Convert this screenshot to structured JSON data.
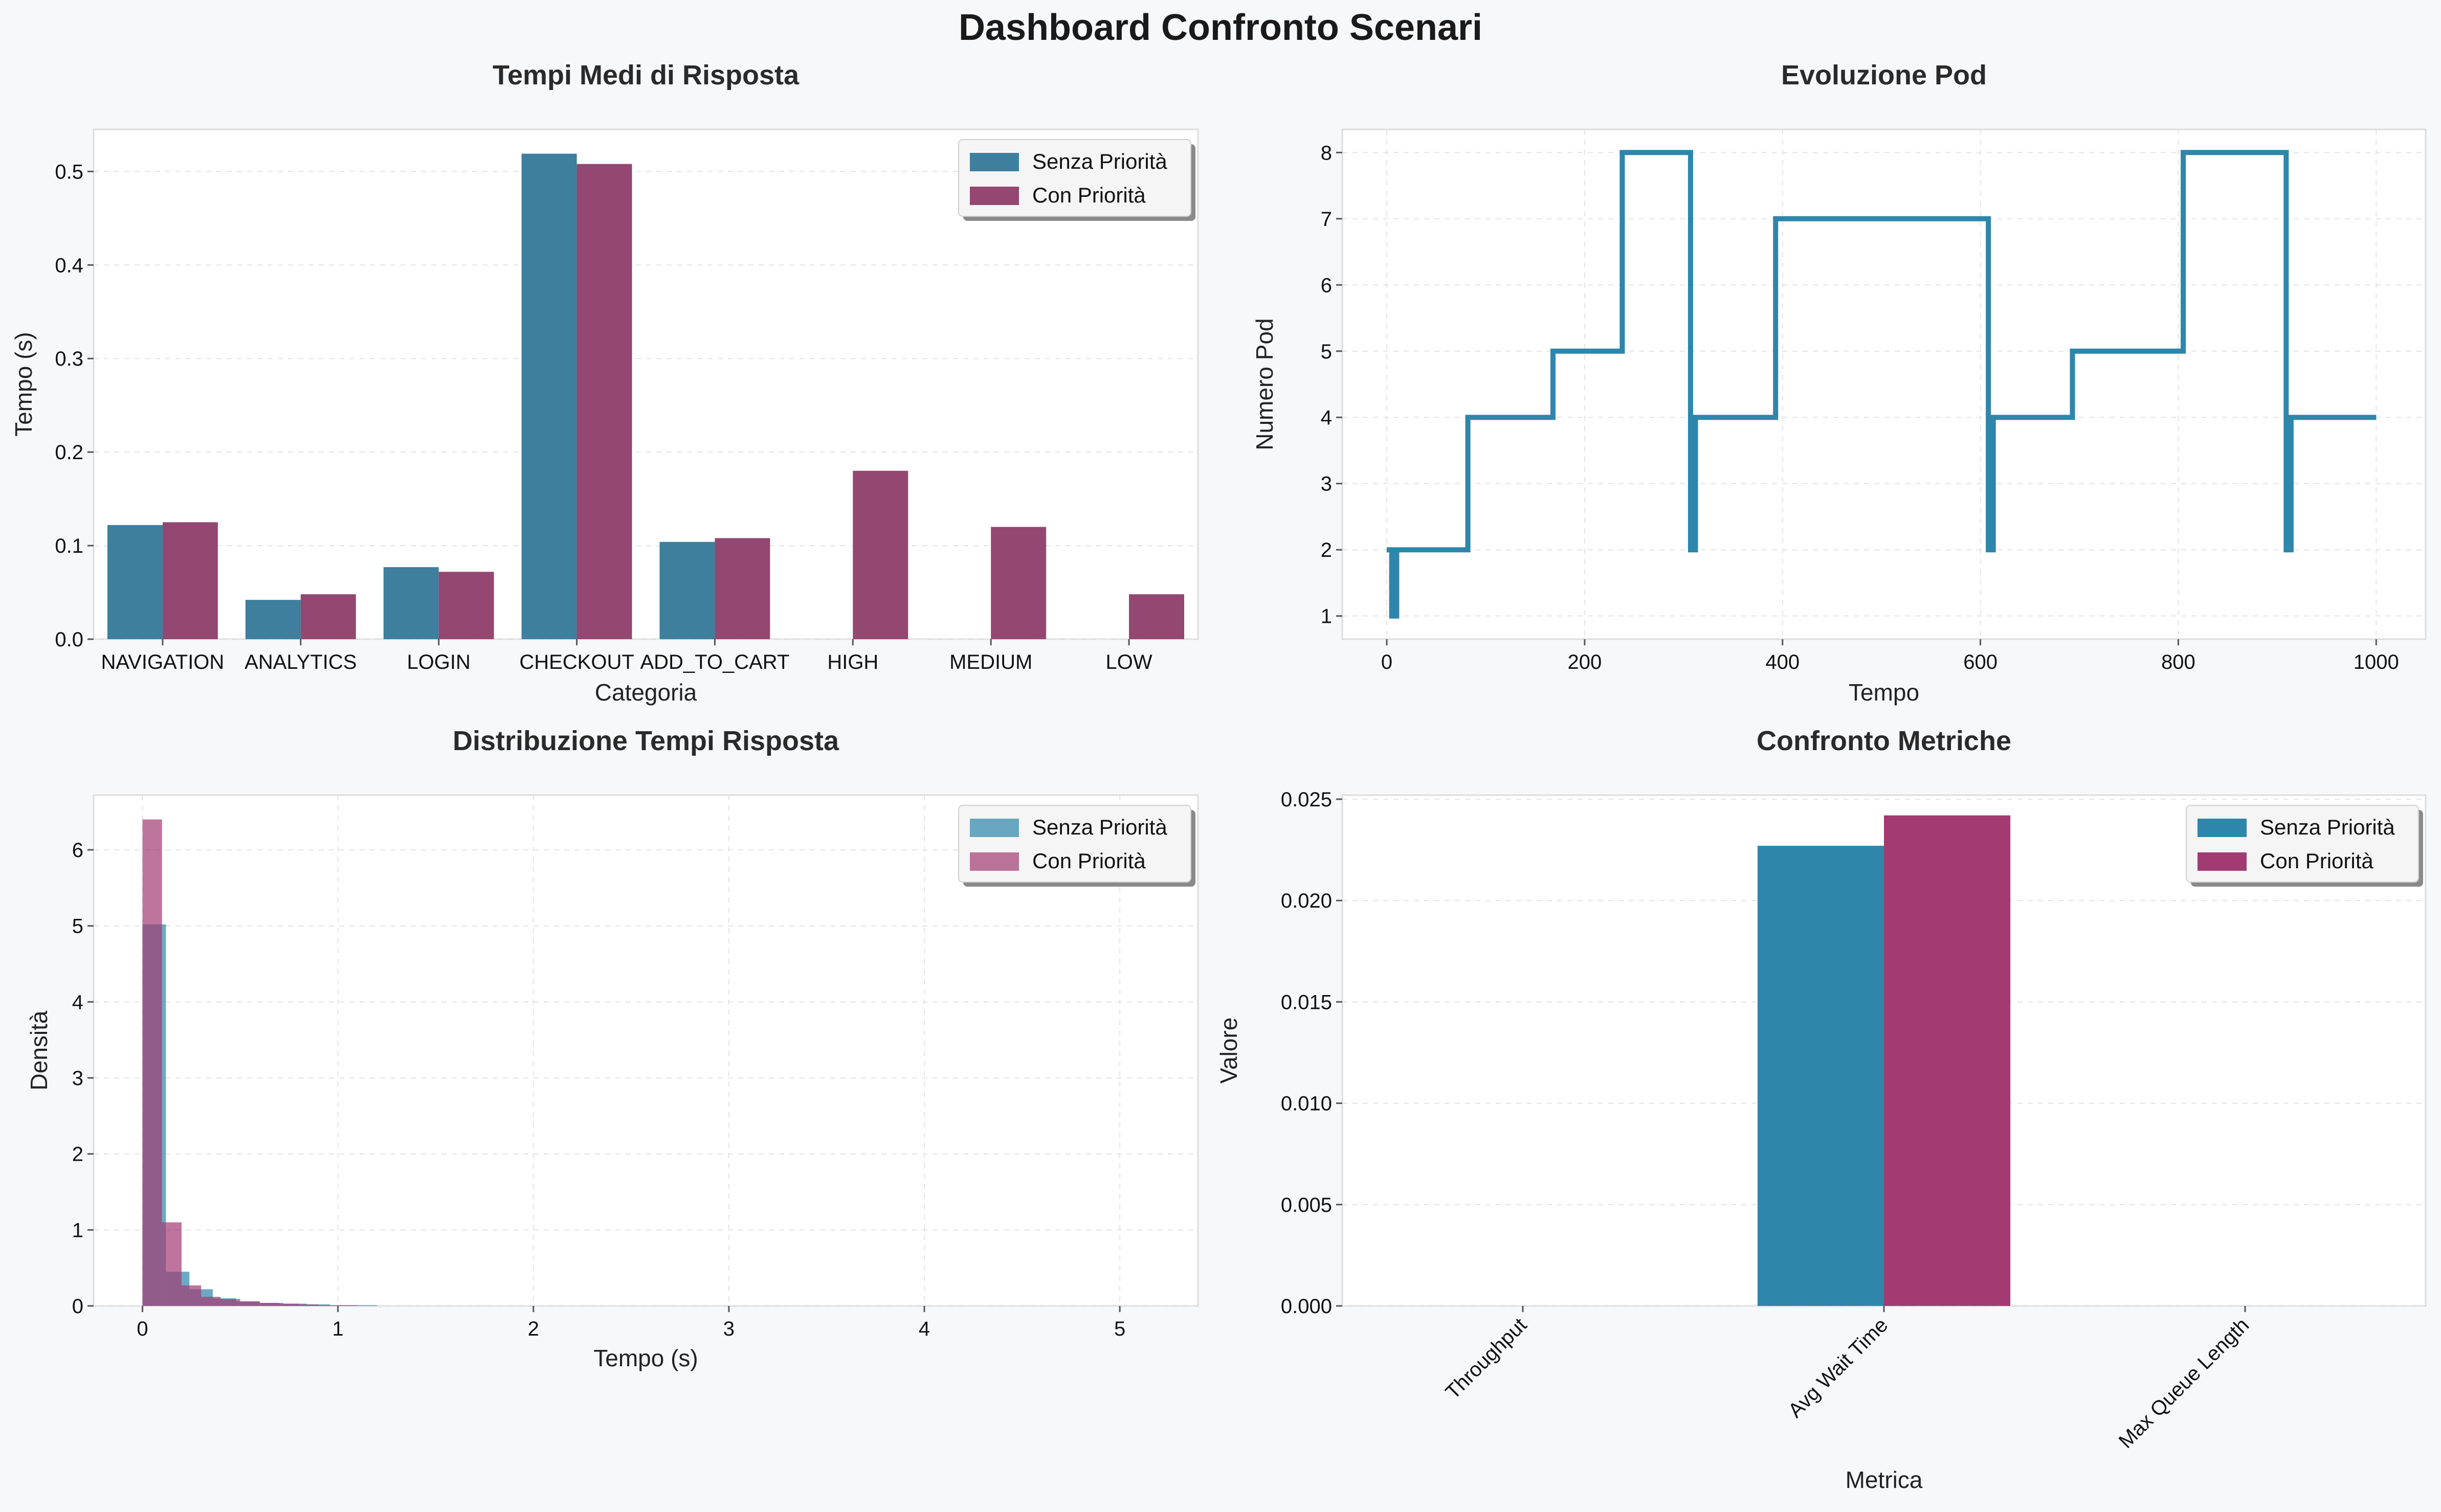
{
  "title": "Dashboard Confronto Scenari",
  "colors": {
    "series_a": "#2e86ab",
    "series_b": "#a23b72",
    "bar_a_dark": "#3d7f9c",
    "bar_b_dark": "#944770",
    "hist_a": "#6aa9c3",
    "hist_b": "#bd789c"
  },
  "chart_data": [
    {
      "type": "bar",
      "title": "Tempi Medi di Risposta",
      "xlabel": "Categoria",
      "ylabel": "Tempo (s)",
      "categories": [
        "NAVIGATION",
        "ANALYTICS",
        "LOGIN",
        "CHECKOUT",
        "ADD_TO_CART",
        "HIGH",
        "MEDIUM",
        "LOW"
      ],
      "series": [
        {
          "name": "Senza Priorità",
          "values": [
            0.122,
            0.042,
            0.077,
            0.519,
            0.104,
            null,
            null,
            null
          ]
        },
        {
          "name": "Con Priorità",
          "values": [
            0.125,
            0.048,
            0.072,
            0.508,
            0.108,
            0.18,
            0.12,
            0.048
          ]
        }
      ],
      "ylim": [
        0,
        0.545
      ],
      "yticks": [
        0.0,
        0.1,
        0.2,
        0.3,
        0.4,
        0.5
      ],
      "ytick_labels": [
        "0.0",
        "0.1",
        "0.2",
        "0.3",
        "0.4",
        "0.5"
      ],
      "grid": true,
      "legend": "top-right"
    },
    {
      "type": "line",
      "title": "Evoluzione Pod",
      "xlabel": "Tempo",
      "ylabel": "Numero Pod",
      "series": [
        {
          "x": [
            0,
            5,
            5,
            10,
            10,
            15,
            15,
            82,
            82,
            168,
            168,
            238,
            238,
            307,
            307,
            312,
            312,
            393,
            393,
            608,
            608,
            613,
            613,
            693,
            693,
            805,
            805,
            909,
            909,
            914,
            914,
            1000
          ],
          "y": [
            2,
            2,
            1,
            1,
            2,
            2,
            2,
            2,
            4,
            4,
            5,
            5,
            8,
            8,
            2,
            2,
            4,
            4,
            7,
            7,
            2,
            2,
            4,
            4,
            5,
            5,
            8,
            8,
            2,
            2,
            4,
            4
          ]
        }
      ],
      "xlim": [
        -45,
        1050
      ],
      "ylim": [
        0.65,
        8.35
      ],
      "xticks": [
        0,
        200,
        400,
        600,
        800,
        1000
      ],
      "xtick_labels": [
        "0",
        "200",
        "400",
        "600",
        "800",
        "1000"
      ],
      "yticks": [
        1,
        2,
        3,
        4,
        5,
        6,
        7,
        8
      ],
      "ytick_labels": [
        "1",
        "2",
        "3",
        "4",
        "5",
        "6",
        "7",
        "8"
      ],
      "grid": true
    },
    {
      "type": "histogram",
      "title": "Distribuzione Tempi Risposta",
      "xlabel": "Tempo (s)",
      "ylabel": "Densità",
      "series": [
        {
          "name": "Senza Priorità",
          "bin_width": 0.12,
          "bins": [
            0,
            0.12,
            0.24,
            0.36,
            0.48,
            0.6,
            0.72,
            0.84,
            0.96,
            1.08,
            1.2
          ],
          "density": [
            5.02,
            0.45,
            0.22,
            0.1,
            0.06,
            0.04,
            0.03,
            0.02,
            0.01,
            0.01
          ]
        },
        {
          "name": "Con Priorità",
          "bin_width": 0.1,
          "bins": [
            0,
            0.1,
            0.2,
            0.3,
            0.4,
            0.5,
            0.6,
            0.7,
            0.8,
            0.9,
            1.0,
            1.1
          ],
          "density": [
            6.4,
            1.1,
            0.27,
            0.12,
            0.09,
            0.06,
            0.04,
            0.03,
            0.02,
            0.01,
            0.01
          ]
        }
      ],
      "xlim": [
        -0.25,
        5.4
      ],
      "ylim": [
        0,
        6.72
      ],
      "xticks": [
        0,
        1,
        2,
        3,
        4,
        5
      ],
      "xtick_labels": [
        "0",
        "1",
        "2",
        "3",
        "4",
        "5"
      ],
      "yticks": [
        0,
        1,
        2,
        3,
        4,
        5,
        6
      ],
      "ytick_labels": [
        "0",
        "1",
        "2",
        "3",
        "4",
        "5",
        "6"
      ],
      "grid": true,
      "legend": "top-right"
    },
    {
      "type": "bar",
      "title": "Confronto Metriche",
      "xlabel": "Metrica",
      "ylabel": "Valore",
      "categories": [
        "Throughput",
        "Avg Wait Time",
        "Max Queue Length"
      ],
      "series": [
        {
          "name": "Senza Priorità",
          "values": [
            0,
            0.0227,
            0
          ]
        },
        {
          "name": "Con Priorità",
          "values": [
            0,
            0.0242,
            0
          ]
        }
      ],
      "ylim": [
        0,
        0.0252
      ],
      "yticks": [
        0.0,
        0.005,
        0.01,
        0.015,
        0.02,
        0.025
      ],
      "ytick_labels": [
        "0.000",
        "0.005",
        "0.010",
        "0.015",
        "0.020",
        "0.025"
      ],
      "grid": true,
      "legend": "top-right"
    }
  ]
}
